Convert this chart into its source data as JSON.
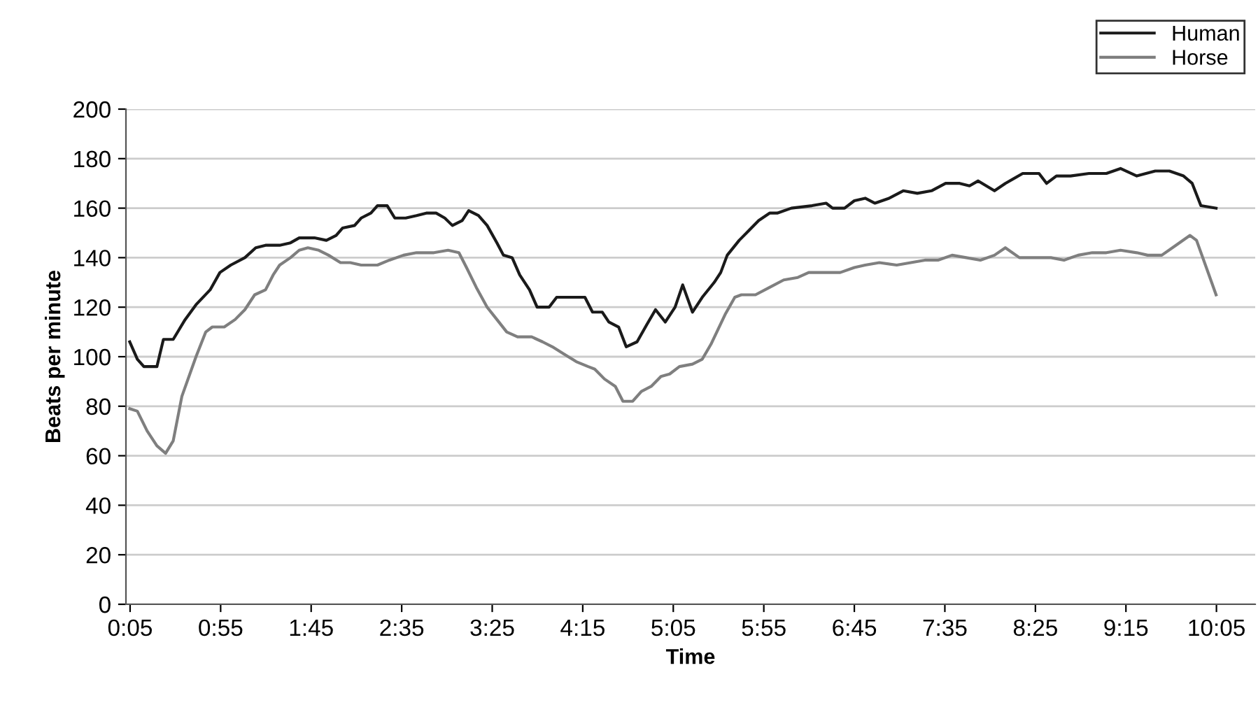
{
  "chart_data": {
    "type": "line",
    "xlabel": "Time",
    "ylabel": "Beats per minute",
    "xlim": [
      0.045,
      10.44
    ],
    "ylim": [
      0,
      200
    ],
    "yticks": [
      0,
      20,
      40,
      60,
      80,
      100,
      120,
      140,
      160,
      180,
      200
    ],
    "xticks": [
      {
        "value": 0.0833,
        "label": "0:05"
      },
      {
        "value": 0.9167,
        "label": "0:55"
      },
      {
        "value": 1.75,
        "label": "1:45"
      },
      {
        "value": 2.5833,
        "label": "2:35"
      },
      {
        "value": 3.4167,
        "label": "3:25"
      },
      {
        "value": 4.25,
        "label": "4:15"
      },
      {
        "value": 5.0833,
        "label": "5:05"
      },
      {
        "value": 5.9167,
        "label": "5:55"
      },
      {
        "value": 6.75,
        "label": "6:45"
      },
      {
        "value": 7.5833,
        "label": "7:35"
      },
      {
        "value": 8.4167,
        "label": "8:25"
      },
      {
        "value": 9.25,
        "label": "9:15"
      },
      {
        "value": 10.0833,
        "label": "10:05"
      }
    ],
    "grid": "y",
    "legend": "top right",
    "marker": "none",
    "line_style": "solid",
    "series": [
      {
        "name": "Human",
        "color": "#1a1a1a",
        "x": [
          0.08,
          0.15,
          0.21,
          0.33,
          0.39,
          0.48,
          0.59,
          0.69,
          0.82,
          0.91,
          1.01,
          1.14,
          1.24,
          1.33,
          1.46,
          1.56,
          1.64,
          1.78,
          1.89,
          1.98,
          2.04,
          2.15,
          2.21,
          2.3,
          2.36,
          2.45,
          2.52,
          2.62,
          2.72,
          2.81,
          2.9,
          2.98,
          3.05,
          3.14,
          3.2,
          3.29,
          3.37,
          3.46,
          3.52,
          3.6,
          3.67,
          3.76,
          3.83,
          3.94,
          4.01,
          4.27,
          4.34,
          4.43,
          4.49,
          4.58,
          4.65,
          4.75,
          4.84,
          4.92,
          5.01,
          5.1,
          5.17,
          5.26,
          5.35,
          5.46,
          5.52,
          5.58,
          5.69,
          5.78,
          5.87,
          5.97,
          6.04,
          6.17,
          6.36,
          6.49,
          6.55,
          6.66,
          6.75,
          6.85,
          6.94,
          7.07,
          7.2,
          7.33,
          7.46,
          7.59,
          7.72,
          7.81,
          7.89,
          8.04,
          8.14,
          8.3,
          8.45,
          8.52,
          8.61,
          8.74,
          8.91,
          9.07,
          9.2,
          9.35,
          9.52,
          9.65,
          9.78,
          9.86,
          9.94,
          10.08
        ],
        "values": [
          106,
          99,
          96,
          96,
          107,
          107,
          115,
          121,
          127,
          134,
          137,
          140,
          144,
          145,
          145,
          146,
          148,
          148,
          147,
          149,
          152,
          153,
          156,
          158,
          161,
          161,
          156,
          156,
          157,
          158,
          158,
          156,
          153,
          155,
          159,
          157,
          153,
          146,
          141,
          140,
          133,
          127,
          120,
          120,
          124,
          124,
          118,
          118,
          114,
          112,
          104,
          106,
          113,
          119,
          114,
          120,
          129,
          118,
          124,
          130,
          134,
          141,
          147,
          151,
          155,
          158,
          158,
          160,
          161,
          162,
          160,
          160,
          163,
          164,
          162,
          164,
          167,
          166,
          167,
          170,
          170,
          169,
          171,
          167,
          170,
          174,
          174,
          170,
          173,
          173,
          174,
          174,
          176,
          173,
          175,
          175,
          173,
          170,
          161,
          160
        ]
      },
      {
        "name": "Horse",
        "color": "#7f7f7f",
        "x": [
          0.08,
          0.15,
          0.24,
          0.33,
          0.41,
          0.48,
          0.56,
          0.69,
          0.78,
          0.84,
          0.95,
          1.05,
          1.14,
          1.23,
          1.33,
          1.4,
          1.46,
          1.56,
          1.64,
          1.72,
          1.82,
          1.91,
          2.02,
          2.11,
          2.21,
          2.36,
          2.47,
          2.6,
          2.72,
          2.88,
          3.01,
          3.11,
          3.18,
          3.27,
          3.37,
          3.46,
          3.55,
          3.65,
          3.78,
          3.88,
          3.97,
          4.08,
          4.19,
          4.3,
          4.36,
          4.45,
          4.55,
          4.62,
          4.71,
          4.79,
          4.88,
          4.97,
          5.05,
          5.14,
          5.26,
          5.35,
          5.43,
          5.56,
          5.65,
          5.71,
          5.84,
          5.97,
          6.1,
          6.23,
          6.33,
          6.49,
          6.62,
          6.75,
          6.85,
          6.98,
          7.14,
          7.27,
          7.4,
          7.52,
          7.65,
          7.78,
          7.91,
          8.04,
          8.14,
          8.27,
          8.42,
          8.56,
          8.68,
          8.81,
          8.94,
          9.07,
          9.2,
          9.35,
          9.45,
          9.58,
          9.71,
          9.84,
          9.9,
          9.99,
          10.08
        ],
        "values": [
          79,
          78,
          70,
          64,
          61,
          66,
          84,
          100,
          110,
          112,
          112,
          115,
          119,
          125,
          127,
          133,
          137,
          140,
          143,
          144,
          143,
          141,
          138,
          138,
          137,
          137,
          139,
          141,
          142,
          142,
          143,
          142,
          136,
          128,
          120,
          115,
          110,
          108,
          108,
          106,
          104,
          101,
          98,
          96,
          95,
          91,
          88,
          82,
          82,
          86,
          88,
          92,
          93,
          96,
          97,
          99,
          105,
          117,
          124,
          125,
          125,
          128,
          131,
          132,
          134,
          134,
          134,
          136,
          137,
          138,
          137,
          138,
          139,
          139,
          141,
          140,
          139,
          141,
          144,
          140,
          140,
          140,
          139,
          141,
          142,
          142,
          143,
          142,
          141,
          141,
          145,
          149,
          147,
          136,
          125
        ]
      }
    ]
  }
}
